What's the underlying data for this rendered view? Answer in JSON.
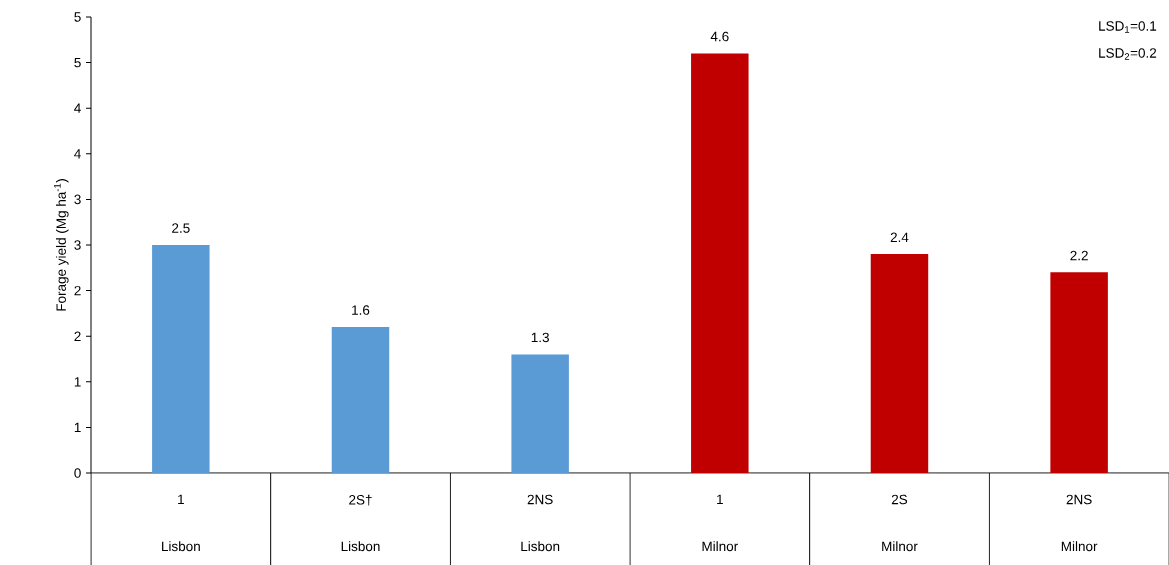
{
  "chart_data": {
    "type": "bar",
    "ylabel": "Forage yield (Mg ha$^{-1}$)",
    "categories": [
      "1",
      "2S†",
      "2NS",
      "1",
      "2S",
      "2NS"
    ],
    "values": [
      2.5,
      1.6,
      1.3,
      4.6,
      2.4,
      2.2
    ],
    "colors": [
      "#5b9bd5",
      "#5b9bd5",
      "#5b9bd5",
      "#c00000",
      "#c00000",
      "#c00000"
    ],
    "ylim": [
      0,
      5
    ],
    "yticks": [
      0,
      {
        "value": 0.5,
        "label": "1"
      },
      1,
      {
        "value": 1.5,
        "label": "2"
      },
      2,
      {
        "value": 2.5,
        "label": "3"
      },
      3,
      {
        "value": 3.5,
        "label": "4"
      },
      4,
      {
        "value": 4.5,
        "label": "5"
      },
      5
    ],
    "data_labels": true,
    "annotations": [
      "Lisbon",
      "Lisbon",
      "Lisbon",
      "Milnor",
      "Milnor",
      "Milnor",
      "LSD$_{1}$=0.1",
      "LSD$_{2}$=0.2"
    ]
  }
}
